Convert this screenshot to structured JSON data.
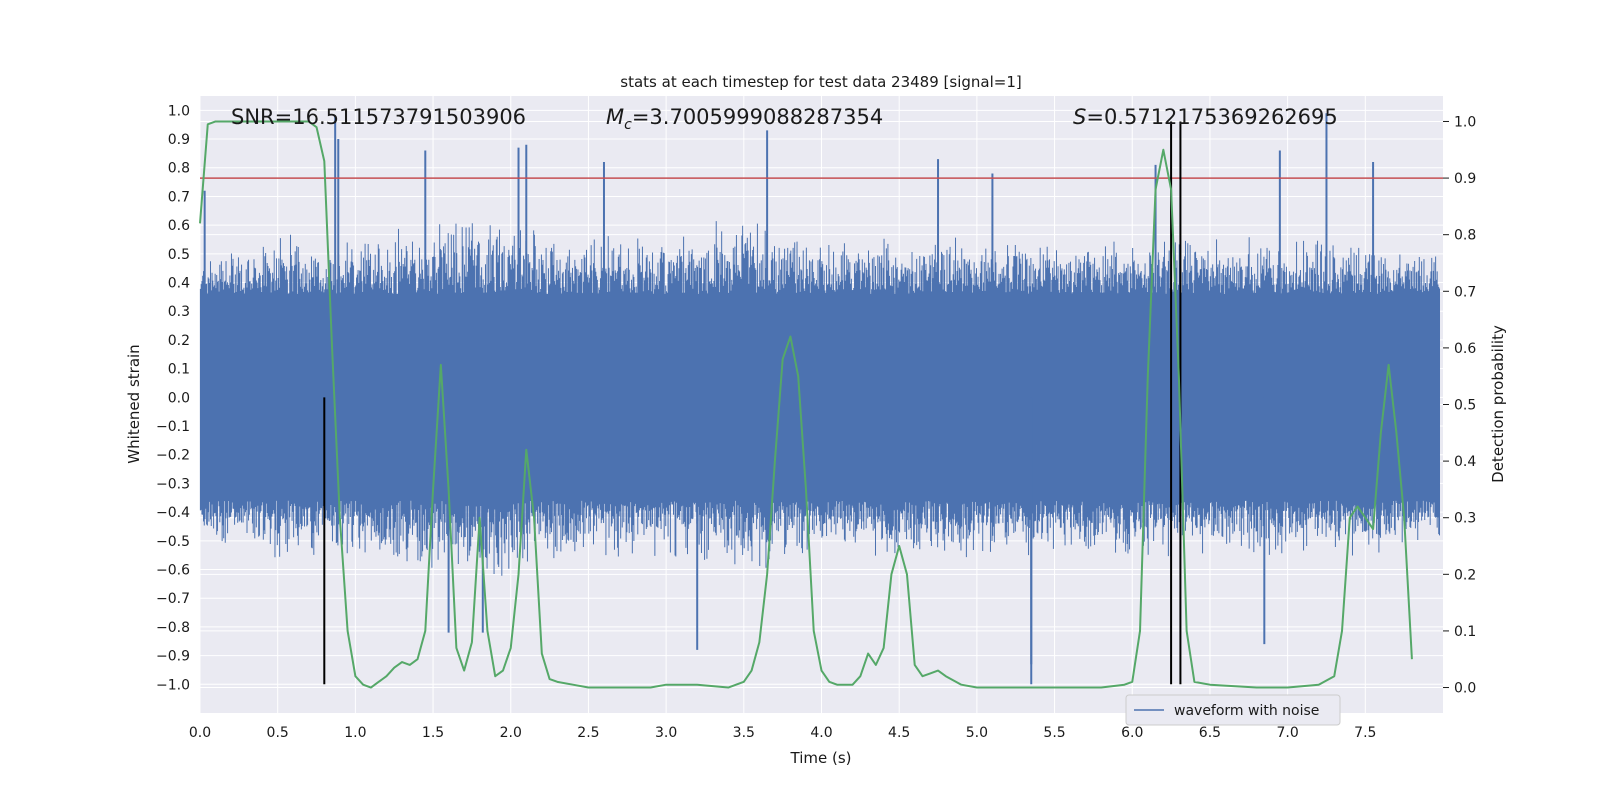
{
  "chart_data": {
    "type": "line",
    "title": "stats at each timestep for test data 23489 [signal=1]",
    "xlabel": "Time (s)",
    "ylabel": "Whitened strain",
    "y2label": "Detection probability",
    "xlim": [
      0.0,
      8.0
    ],
    "ylim": [
      -1.1,
      1.05
    ],
    "y2lim": [
      -0.045,
      1.045
    ],
    "xticks": [
      "0.0",
      "0.5",
      "1.0",
      "1.5",
      "2.0",
      "2.5",
      "3.0",
      "3.5",
      "4.0",
      "4.5",
      "5.0",
      "5.5",
      "6.0",
      "6.5",
      "7.0",
      "7.5"
    ],
    "yticks": [
      "1.0",
      "0.9",
      "0.8",
      "0.7",
      "0.6",
      "0.5",
      "0.4",
      "0.3",
      "0.2",
      "0.1",
      "0.0",
      "-0.1",
      "-0.2",
      "-0.3",
      "-0.4",
      "-0.5",
      "-0.6",
      "-0.7",
      "-0.8",
      "-0.9",
      "-1.0"
    ],
    "y2ticks": [
      "1.0",
      "0.9",
      "0.8",
      "0.7",
      "0.6",
      "0.5",
      "0.4",
      "0.3",
      "0.2",
      "0.1",
      "0.0"
    ],
    "grid": true,
    "legend_position": "lower-right",
    "annotations": {
      "snr": "SNR=16.511573791503906",
      "mc_symbol": "M",
      "mc_sub": "c",
      "mc_value": "=3.7005999088287354",
      "s_symbol": "S",
      "s_value": "=0.5712175369262695"
    },
    "colors": {
      "plot_bg": "#eaeaf2",
      "grid": "#ffffff",
      "waveform": "#4c72b0",
      "probability": "#55a868",
      "threshold": "#c44e52",
      "markers": "#000000"
    },
    "series": [
      {
        "name": "waveform with noise",
        "axis": "left",
        "kind": "noise_envelope",
        "upper_envelope": [
          [
            0.0,
            0.45
          ],
          [
            0.5,
            0.5
          ],
          [
            1.0,
            0.5
          ],
          [
            1.5,
            0.55
          ],
          [
            2.0,
            0.55
          ],
          [
            2.5,
            0.5
          ],
          [
            3.0,
            0.5
          ],
          [
            3.5,
            0.55
          ],
          [
            4.0,
            0.5
          ],
          [
            4.5,
            0.5
          ],
          [
            5.0,
            0.5
          ],
          [
            5.5,
            0.5
          ],
          [
            6.0,
            0.5
          ],
          [
            6.5,
            0.5
          ],
          [
            7.0,
            0.5
          ],
          [
            7.5,
            0.5
          ],
          [
            8.0,
            0.45
          ]
        ],
        "lower_envelope": [
          [
            0.0,
            -0.45
          ],
          [
            0.5,
            -0.5
          ],
          [
            1.0,
            -0.5
          ],
          [
            1.5,
            -0.55
          ],
          [
            2.0,
            -0.55
          ],
          [
            2.5,
            -0.5
          ],
          [
            3.0,
            -0.5
          ],
          [
            3.5,
            -0.55
          ],
          [
            4.0,
            -0.5
          ],
          [
            4.5,
            -0.5
          ],
          [
            5.0,
            -0.5
          ],
          [
            5.5,
            -0.5
          ],
          [
            6.0,
            -0.5
          ],
          [
            6.5,
            -0.5
          ],
          [
            7.0,
            -0.5
          ],
          [
            7.5,
            -0.5
          ],
          [
            8.0,
            -0.45
          ]
        ],
        "peaks": [
          [
            0.03,
            0.72
          ],
          [
            0.87,
            0.98
          ],
          [
            0.89,
            0.9
          ],
          [
            1.45,
            0.86
          ],
          [
            1.6,
            -0.82
          ],
          [
            1.82,
            -0.82
          ],
          [
            2.05,
            0.87
          ],
          [
            2.1,
            0.88
          ],
          [
            2.6,
            0.82
          ],
          [
            3.2,
            -0.88
          ],
          [
            3.65,
            0.93
          ],
          [
            4.75,
            0.83
          ],
          [
            5.1,
            0.78
          ],
          [
            5.35,
            -0.93
          ],
          [
            5.35,
            -1.0
          ],
          [
            6.15,
            0.81
          ],
          [
            6.85,
            -0.86
          ],
          [
            6.95,
            0.86
          ],
          [
            7.25,
            0.99
          ],
          [
            7.55,
            0.82
          ]
        ]
      },
      {
        "name": "",
        "axis": "right",
        "kind": "line",
        "points": [
          [
            0.0,
            0.82
          ],
          [
            0.05,
            0.995
          ],
          [
            0.1,
            1.0
          ],
          [
            0.2,
            1.0
          ],
          [
            0.4,
            1.0
          ],
          [
            0.6,
            1.0
          ],
          [
            0.7,
            1.0
          ],
          [
            0.75,
            0.99
          ],
          [
            0.8,
            0.93
          ],
          [
            0.85,
            0.6
          ],
          [
            0.9,
            0.3
          ],
          [
            0.95,
            0.1
          ],
          [
            1.0,
            0.02
          ],
          [
            1.05,
            0.005
          ],
          [
            1.1,
            0.0
          ],
          [
            1.15,
            0.01
          ],
          [
            1.2,
            0.02
          ],
          [
            1.25,
            0.035
          ],
          [
            1.3,
            0.045
          ],
          [
            1.35,
            0.04
          ],
          [
            1.4,
            0.05
          ],
          [
            1.45,
            0.1
          ],
          [
            1.5,
            0.35
          ],
          [
            1.55,
            0.57
          ],
          [
            1.6,
            0.35
          ],
          [
            1.65,
            0.07
          ],
          [
            1.7,
            0.03
          ],
          [
            1.75,
            0.08
          ],
          [
            1.8,
            0.3
          ],
          [
            1.85,
            0.1
          ],
          [
            1.9,
            0.02
          ],
          [
            1.95,
            0.03
          ],
          [
            2.0,
            0.07
          ],
          [
            2.05,
            0.2
          ],
          [
            2.1,
            0.42
          ],
          [
            2.15,
            0.3
          ],
          [
            2.2,
            0.06
          ],
          [
            2.25,
            0.015
          ],
          [
            2.3,
            0.01
          ],
          [
            2.4,
            0.005
          ],
          [
            2.5,
            0.0
          ],
          [
            2.7,
            0.0
          ],
          [
            2.9,
            0.0
          ],
          [
            3.0,
            0.005
          ],
          [
            3.2,
            0.005
          ],
          [
            3.4,
            0.0
          ],
          [
            3.5,
            0.01
          ],
          [
            3.55,
            0.03
          ],
          [
            3.6,
            0.08
          ],
          [
            3.65,
            0.2
          ],
          [
            3.7,
            0.4
          ],
          [
            3.75,
            0.58
          ],
          [
            3.8,
            0.62
          ],
          [
            3.85,
            0.55
          ],
          [
            3.9,
            0.35
          ],
          [
            3.95,
            0.1
          ],
          [
            4.0,
            0.03
          ],
          [
            4.05,
            0.01
          ],
          [
            4.1,
            0.005
          ],
          [
            4.2,
            0.005
          ],
          [
            4.25,
            0.02
          ],
          [
            4.3,
            0.06
          ],
          [
            4.35,
            0.04
          ],
          [
            4.4,
            0.07
          ],
          [
            4.45,
            0.2
          ],
          [
            4.5,
            0.25
          ],
          [
            4.55,
            0.2
          ],
          [
            4.6,
            0.04
          ],
          [
            4.65,
            0.02
          ],
          [
            4.7,
            0.025
          ],
          [
            4.75,
            0.03
          ],
          [
            4.8,
            0.02
          ],
          [
            4.9,
            0.005
          ],
          [
            5.0,
            0.0
          ],
          [
            5.3,
            0.0
          ],
          [
            5.5,
            0.0
          ],
          [
            5.8,
            0.0
          ],
          [
            5.95,
            0.005
          ],
          [
            6.0,
            0.01
          ],
          [
            6.05,
            0.1
          ],
          [
            6.1,
            0.55
          ],
          [
            6.15,
            0.88
          ],
          [
            6.2,
            0.95
          ],
          [
            6.25,
            0.88
          ],
          [
            6.3,
            0.55
          ],
          [
            6.35,
            0.1
          ],
          [
            6.4,
            0.01
          ],
          [
            6.5,
            0.005
          ],
          [
            6.8,
            0.0
          ],
          [
            7.0,
            0.0
          ],
          [
            7.2,
            0.005
          ],
          [
            7.3,
            0.02
          ],
          [
            7.35,
            0.1
          ],
          [
            7.4,
            0.3
          ],
          [
            7.45,
            0.32
          ],
          [
            7.5,
            0.3
          ],
          [
            7.55,
            0.28
          ],
          [
            7.6,
            0.45
          ],
          [
            7.65,
            0.57
          ],
          [
            7.7,
            0.45
          ],
          [
            7.75,
            0.3
          ],
          [
            7.8,
            0.05
          ]
        ]
      }
    ],
    "threshold_line": {
      "axis": "right",
      "y": 0.9
    },
    "marker_lines": [
      {
        "x": 0.8,
        "y_from": -1.0,
        "y_to": 0.0
      },
      {
        "x": 6.25,
        "y_from": -1.0,
        "y_to": 1.0
      },
      {
        "x": 6.31,
        "y_from": -1.0,
        "y_to": 1.0
      }
    ]
  }
}
